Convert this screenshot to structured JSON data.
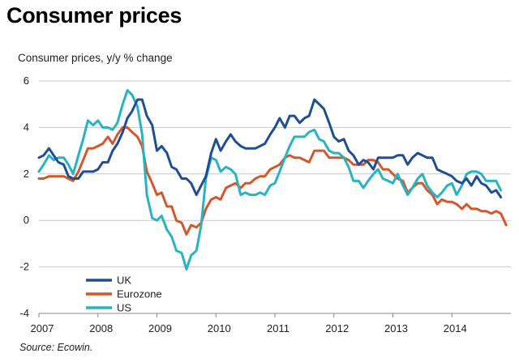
{
  "chart_data": {
    "type": "line",
    "title": "Consumer prices",
    "subtitle": "Consumer prices, y/y % change",
    "source": "Source: Ecowin.",
    "xlabel": "",
    "ylabel": "",
    "xlim": [
      2007,
      2015
    ],
    "ylim": [
      -4,
      6
    ],
    "yticks": [
      6,
      4,
      2,
      0,
      -2,
      -4
    ],
    "xticks": [
      2007,
      2008,
      2009,
      2010,
      2011,
      2012,
      2013,
      2014
    ],
    "xtick_labels": [
      "2007",
      "2008",
      "2009",
      "2010",
      "2011",
      "2012",
      "2013",
      "2014"
    ],
    "grid": "horizontal",
    "legend_position": "bottom-left",
    "series": [
      {
        "name": "UK",
        "color": "#1f4e96",
        "x": [
          2007.0,
          2007.08,
          2007.17,
          2007.25,
          2007.33,
          2007.42,
          2007.5,
          2007.58,
          2007.67,
          2007.75,
          2007.83,
          2007.92,
          2008.0,
          2008.08,
          2008.17,
          2008.25,
          2008.33,
          2008.42,
          2008.5,
          2008.58,
          2008.67,
          2008.75,
          2008.83,
          2008.92,
          2009.0,
          2009.08,
          2009.17,
          2009.25,
          2009.33,
          2009.42,
          2009.5,
          2009.58,
          2009.67,
          2009.75,
          2009.83,
          2009.92,
          2010.0,
          2010.08,
          2010.17,
          2010.25,
          2010.33,
          2010.42,
          2010.5,
          2010.58,
          2010.67,
          2010.75,
          2010.83,
          2010.92,
          2011.0,
          2011.08,
          2011.17,
          2011.25,
          2011.33,
          2011.42,
          2011.5,
          2011.58,
          2011.67,
          2011.75,
          2011.83,
          2011.92,
          2012.0,
          2012.08,
          2012.17,
          2012.25,
          2012.33,
          2012.42,
          2012.5,
          2012.58,
          2012.67,
          2012.75,
          2012.83,
          2012.92,
          2013.0,
          2013.08,
          2013.17,
          2013.25,
          2013.33,
          2013.42,
          2013.5,
          2013.58,
          2013.67,
          2013.75,
          2013.83,
          2013.92,
          2014.0,
          2014.08,
          2014.17,
          2014.25,
          2014.33,
          2014.42,
          2014.5,
          2014.58,
          2014.67,
          2014.75,
          2014.83
        ],
        "values": [
          2.7,
          2.8,
          3.1,
          2.8,
          2.5,
          2.4,
          1.9,
          1.8,
          1.8,
          2.1,
          2.1,
          2.1,
          2.2,
          2.5,
          2.5,
          3.0,
          3.3,
          3.8,
          4.4,
          4.7,
          5.2,
          5.2,
          4.5,
          4.1,
          3.0,
          3.2,
          2.9,
          2.3,
          2.2,
          1.8,
          1.8,
          1.6,
          1.1,
          1.5,
          1.9,
          2.9,
          3.5,
          3.0,
          3.4,
          3.7,
          3.4,
          3.2,
          3.1,
          3.1,
          3.1,
          3.2,
          3.3,
          3.7,
          4.0,
          4.4,
          4.0,
          4.5,
          4.5,
          4.2,
          4.4,
          4.5,
          5.2,
          5.0,
          4.8,
          4.2,
          3.6,
          3.4,
          3.5,
          3.0,
          2.8,
          2.4,
          2.6,
          2.5,
          2.2,
          2.7,
          2.7,
          2.7,
          2.7,
          2.8,
          2.8,
          2.4,
          2.7,
          2.9,
          2.8,
          2.7,
          2.7,
          2.2,
          2.1,
          2.0,
          1.9,
          1.7,
          1.6,
          1.8,
          1.5,
          1.9,
          1.6,
          1.5,
          1.2,
          1.3,
          1.0
        ]
      },
      {
        "name": "Eurozone",
        "color": "#d4572b",
        "x": [
          2007.0,
          2007.08,
          2007.17,
          2007.25,
          2007.33,
          2007.42,
          2007.5,
          2007.58,
          2007.67,
          2007.75,
          2007.83,
          2007.92,
          2008.0,
          2008.08,
          2008.17,
          2008.25,
          2008.33,
          2008.42,
          2008.5,
          2008.58,
          2008.67,
          2008.75,
          2008.83,
          2008.92,
          2009.0,
          2009.08,
          2009.17,
          2009.25,
          2009.33,
          2009.42,
          2009.5,
          2009.58,
          2009.67,
          2009.75,
          2009.83,
          2009.92,
          2010.0,
          2010.08,
          2010.17,
          2010.25,
          2010.33,
          2010.42,
          2010.5,
          2010.58,
          2010.67,
          2010.75,
          2010.83,
          2010.92,
          2011.0,
          2011.08,
          2011.17,
          2011.25,
          2011.33,
          2011.42,
          2011.5,
          2011.58,
          2011.67,
          2011.75,
          2011.83,
          2011.92,
          2012.0,
          2012.08,
          2012.17,
          2012.25,
          2012.33,
          2012.42,
          2012.5,
          2012.58,
          2012.67,
          2012.75,
          2012.83,
          2012.92,
          2013.0,
          2013.08,
          2013.17,
          2013.25,
          2013.33,
          2013.42,
          2013.5,
          2013.58,
          2013.67,
          2013.75,
          2013.83,
          2013.92,
          2014.0,
          2014.08,
          2014.17,
          2014.25,
          2014.33,
          2014.42,
          2014.5,
          2014.58,
          2014.67,
          2014.75,
          2014.83,
          2014.92
        ],
        "values": [
          1.8,
          1.8,
          1.9,
          1.9,
          1.9,
          1.9,
          1.8,
          1.7,
          2.1,
          2.6,
          3.1,
          3.1,
          3.2,
          3.3,
          3.6,
          3.3,
          3.7,
          4.0,
          4.0,
          3.8,
          3.6,
          3.2,
          2.1,
          1.6,
          1.1,
          1.2,
          0.6,
          0.6,
          0.0,
          -0.1,
          -0.6,
          -0.2,
          -0.3,
          -0.1,
          0.5,
          0.9,
          1.0,
          0.9,
          1.4,
          1.5,
          1.6,
          1.4,
          1.6,
          1.6,
          1.8,
          1.9,
          1.9,
          2.2,
          2.3,
          2.4,
          2.7,
          2.8,
          2.7,
          2.7,
          2.6,
          2.5,
          3.0,
          3.0,
          3.0,
          2.7,
          2.7,
          2.7,
          2.7,
          2.6,
          2.4,
          2.4,
          2.4,
          2.6,
          2.6,
          2.5,
          2.2,
          2.2,
          2.0,
          1.8,
          1.7,
          1.2,
          1.4,
          1.6,
          1.6,
          1.3,
          1.1,
          0.7,
          0.9,
          0.8,
          0.8,
          0.7,
          0.5,
          0.7,
          0.5,
          0.5,
          0.4,
          0.4,
          0.3,
          0.4,
          0.3,
          -0.2
        ]
      },
      {
        "name": "US",
        "color": "#27b3c4",
        "x": [
          2007.0,
          2007.08,
          2007.17,
          2007.25,
          2007.33,
          2007.42,
          2007.5,
          2007.58,
          2007.67,
          2007.75,
          2007.83,
          2007.92,
          2008.0,
          2008.08,
          2008.17,
          2008.25,
          2008.33,
          2008.42,
          2008.5,
          2008.58,
          2008.67,
          2008.75,
          2008.83,
          2008.92,
          2009.0,
          2009.08,
          2009.17,
          2009.25,
          2009.33,
          2009.42,
          2009.5,
          2009.58,
          2009.67,
          2009.75,
          2009.83,
          2009.92,
          2010.0,
          2010.08,
          2010.17,
          2010.25,
          2010.33,
          2010.42,
          2010.5,
          2010.58,
          2010.67,
          2010.75,
          2010.83,
          2010.92,
          2011.0,
          2011.08,
          2011.17,
          2011.25,
          2011.33,
          2011.42,
          2011.5,
          2011.58,
          2011.67,
          2011.75,
          2011.83,
          2011.92,
          2012.0,
          2012.08,
          2012.17,
          2012.25,
          2012.33,
          2012.42,
          2012.5,
          2012.58,
          2012.67,
          2012.75,
          2012.83,
          2012.92,
          2013.0,
          2013.08,
          2013.17,
          2013.25,
          2013.33,
          2013.42,
          2013.5,
          2013.58,
          2013.67,
          2013.75,
          2013.83,
          2013.92,
          2014.0,
          2014.08,
          2014.17,
          2014.25,
          2014.33,
          2014.42,
          2014.5,
          2014.58,
          2014.67,
          2014.75,
          2014.83
        ],
        "values": [
          2.1,
          2.4,
          2.8,
          2.6,
          2.7,
          2.7,
          2.4,
          2.0,
          2.8,
          3.5,
          4.3,
          4.1,
          4.3,
          4.0,
          4.0,
          3.9,
          4.2,
          5.0,
          5.6,
          5.4,
          4.9,
          3.7,
          1.1,
          0.1,
          0.0,
          0.2,
          -0.4,
          -0.7,
          -1.3,
          -1.4,
          -2.1,
          -1.5,
          -1.3,
          -0.2,
          1.8,
          2.7,
          2.6,
          2.1,
          2.3,
          2.2,
          2.0,
          1.1,
          1.2,
          1.1,
          1.1,
          1.2,
          1.1,
          1.5,
          1.6,
          2.1,
          2.7,
          3.2,
          3.6,
          3.6,
          3.6,
          3.8,
          3.9,
          3.5,
          3.4,
          3.0,
          2.9,
          2.9,
          2.7,
          2.3,
          1.7,
          1.7,
          1.4,
          1.7,
          2.0,
          2.2,
          1.8,
          1.7,
          1.6,
          2.0,
          1.5,
          1.1,
          1.4,
          1.8,
          2.0,
          1.5,
          1.2,
          1.0,
          1.2,
          1.5,
          1.6,
          1.1,
          1.5,
          2.0,
          2.1,
          2.1,
          2.0,
          1.7,
          1.7,
          1.7,
          1.3
        ]
      }
    ]
  }
}
